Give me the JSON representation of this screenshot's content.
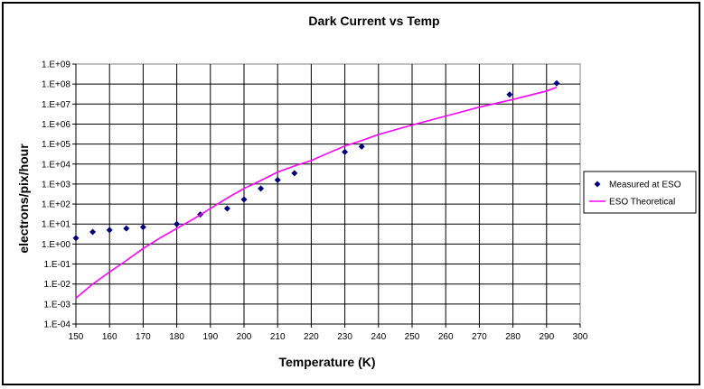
{
  "chart_data": {
    "type": "scatter",
    "title": "Dark Current vs Temp",
    "xlabel": "Temperature (K)",
    "ylabel": "electrons/pix/hour",
    "xlim": [
      150,
      300
    ],
    "ylim": [
      0.0001,
      1000000000
    ],
    "yscale": "log",
    "grid": true,
    "legend_position": "right",
    "x_ticks": [
      150,
      160,
      170,
      180,
      190,
      200,
      210,
      220,
      230,
      240,
      250,
      260,
      270,
      280,
      290,
      300
    ],
    "x_tick_labels": [
      "150",
      "160",
      "170",
      "180",
      "190",
      "200",
      "210",
      "220",
      "230",
      "240",
      "250",
      "260",
      "270",
      "280",
      "290",
      "300"
    ],
    "y_ticks": [
      0.0001,
      0.001,
      0.01,
      0.1,
      1,
      10,
      100,
      1000,
      10000,
      100000,
      1000000,
      10000000,
      100000000,
      1000000000
    ],
    "y_tick_labels": [
      "1.E-04",
      "1.E-03",
      "1.E-02",
      "1.E-01",
      "1.E+00",
      "1.E+01",
      "1.E+02",
      "1.E+03",
      "1.E+04",
      "1.E+05",
      "1.E+06",
      "1.E+07",
      "1.E+08",
      "1.E+09"
    ],
    "series": [
      {
        "name": "Measured at ESO",
        "kind": "scatter",
        "color": "#00007f",
        "marker": "diamond",
        "x": [
          150,
          155,
          160,
          165,
          170,
          180,
          187,
          195,
          200,
          205,
          210,
          215,
          230,
          235,
          279,
          293
        ],
        "y": [
          2,
          4,
          5,
          6,
          7,
          10,
          30,
          60,
          170,
          600,
          1600,
          3500,
          40000,
          75000,
          30000000,
          110000000
        ]
      },
      {
        "name": "ESO Theoretical",
        "kind": "line",
        "color": "#ff00ff",
        "x": [
          150,
          155,
          160,
          165,
          170,
          175,
          180,
          185,
          190,
          195,
          200,
          205,
          210,
          215,
          220,
          225,
          230,
          235,
          240,
          250,
          260,
          270,
          280,
          290,
          293
        ],
        "y": [
          0.002,
          0.01,
          0.04,
          0.15,
          0.6,
          2,
          6,
          18,
          60,
          200,
          600,
          1500,
          4000,
          8000,
          15000,
          35000,
          80000,
          150000,
          300000,
          900000,
          2500000,
          7000000,
          17000000,
          45000000,
          70000000
        ]
      }
    ]
  }
}
